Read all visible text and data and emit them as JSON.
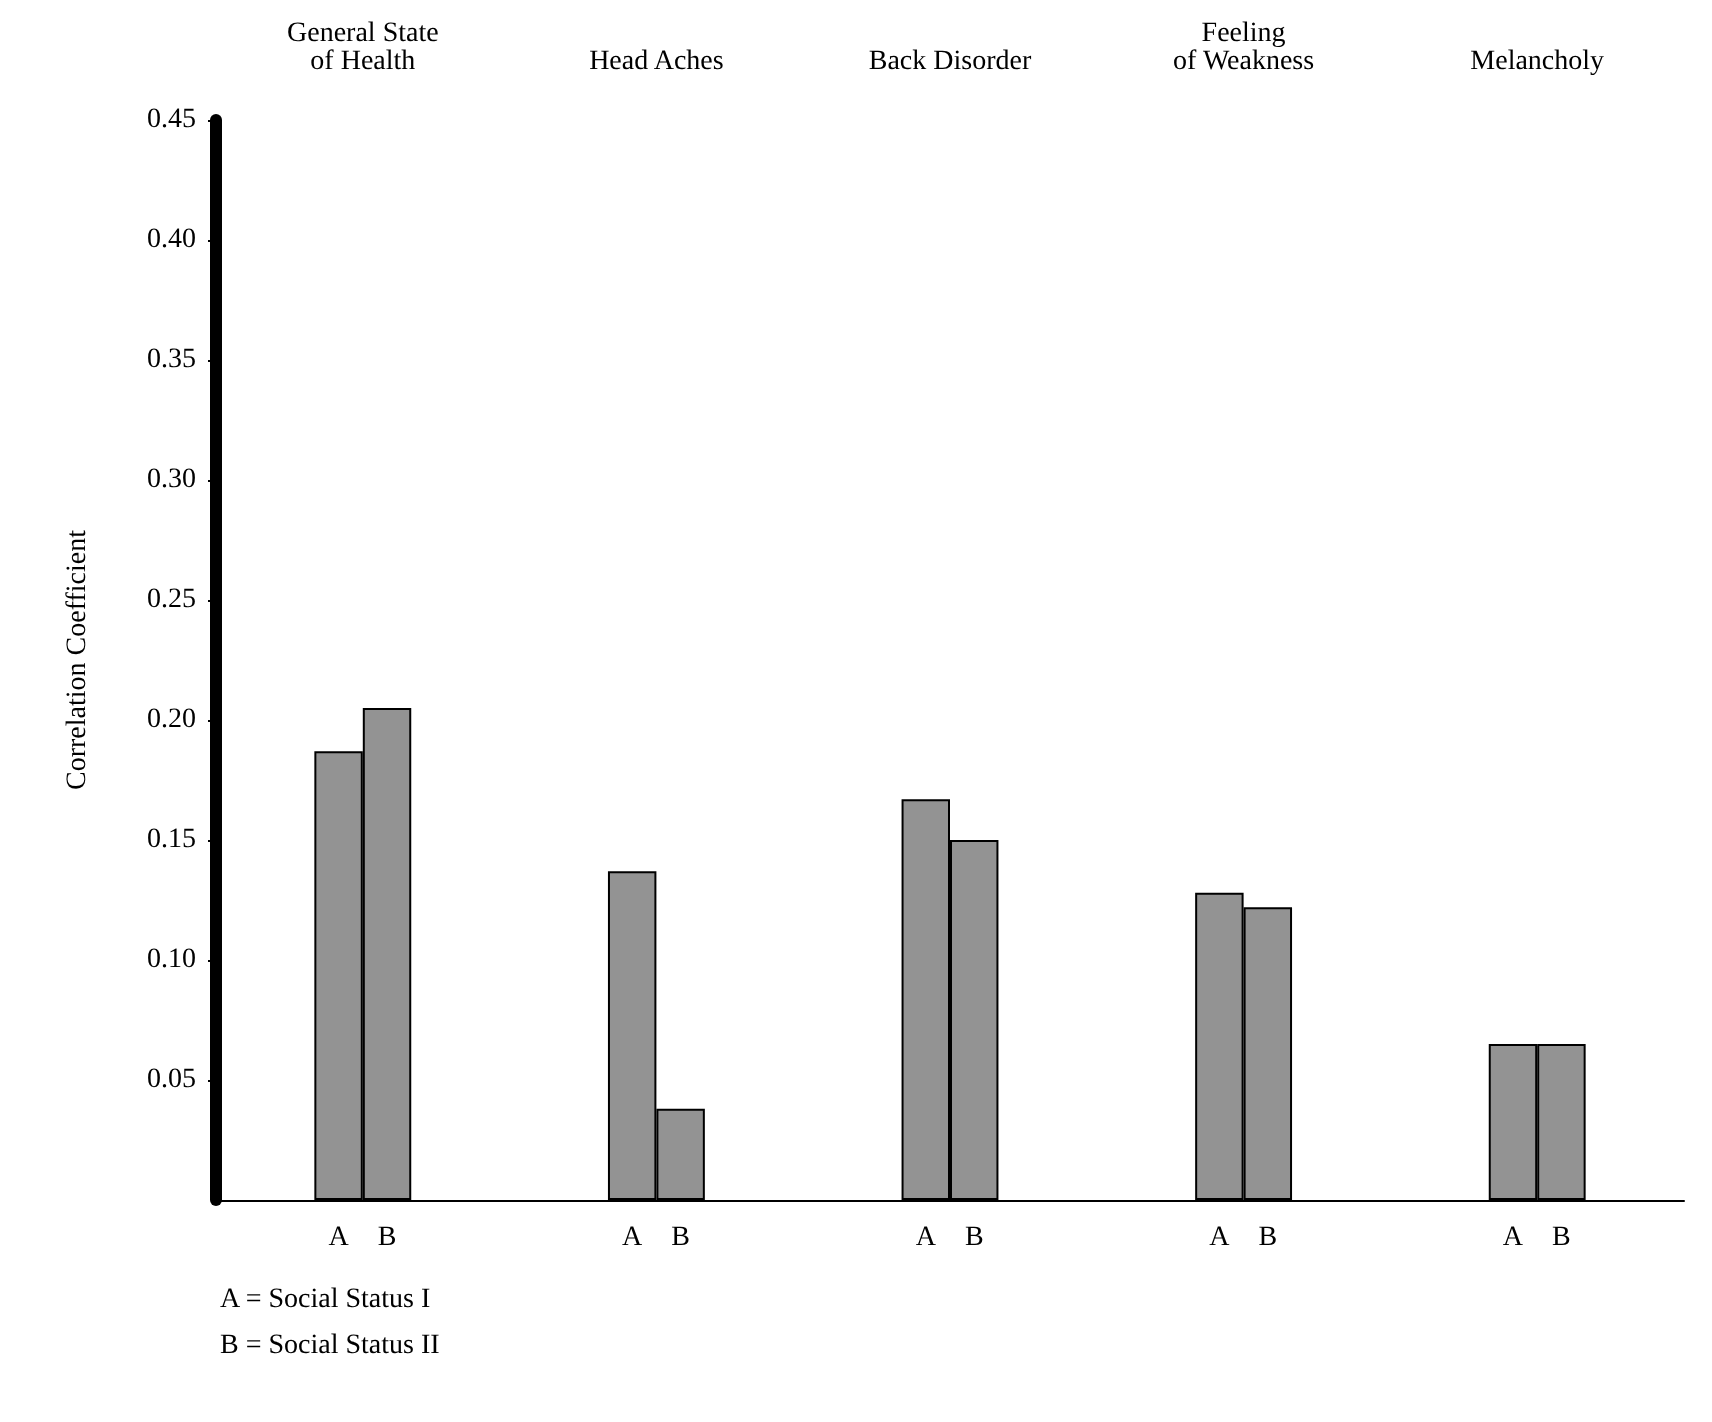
{
  "chart_data": {
    "type": "bar",
    "ylabel": "Correlation Coefficient",
    "categories": [
      "General State\nof Health",
      "Head Aches",
      "Back Disorder",
      "Feeling\nof Weakness",
      "Melancholy"
    ],
    "series": [
      {
        "name": "A",
        "color": "#939393",
        "values": [
          0.187,
          0.137,
          0.167,
          0.128,
          0.065
        ]
      },
      {
        "name": "B",
        "color": "#939393",
        "values": [
          0.205,
          0.038,
          0.15,
          0.122,
          0.065
        ]
      }
    ],
    "ylim": [
      0,
      0.45
    ],
    "yticks": [
      {
        "value": 0.05,
        "label": "0.05"
      },
      {
        "value": 0.1,
        "label": "0.10"
      },
      {
        "value": 0.15,
        "label": "0.15"
      },
      {
        "value": 0.2,
        "label": "0.20"
      },
      {
        "value": 0.25,
        "label": "0.25"
      },
      {
        "value": 0.3,
        "label": "0.30"
      },
      {
        "value": 0.35,
        "label": "0.35"
      },
      {
        "value": 0.4,
        "label": "0.40"
      },
      {
        "value": 0.45,
        "label": "0.45"
      }
    ],
    "legend": false,
    "annotations": [
      "A = Social Status I",
      "B = Social Status II"
    ]
  }
}
